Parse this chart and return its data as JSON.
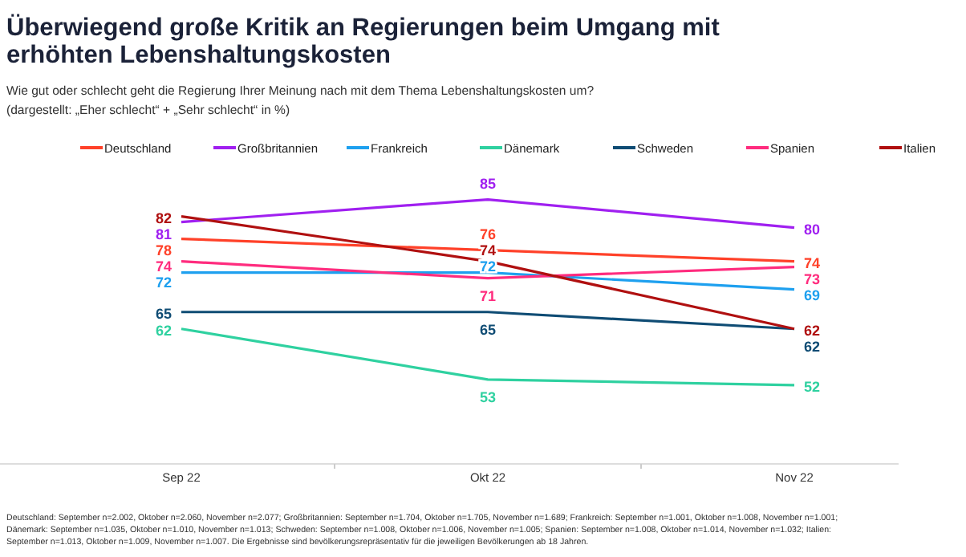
{
  "chart_data": {
    "type": "line",
    "title": "Überwiegend große Kritik an Regierungen beim Umgang mit erhöhten Lebenshaltungskosten",
    "subtitle": "Wie gut oder schlecht geht die Regierung Ihrer Meinung nach mit dem Thema Lebenshaltungskosten um?\n(dargestellt: „Eher schlecht“ + „Sehr schlecht“ in %)",
    "categories": [
      "Sep 22",
      "Okt 22",
      "Nov 22"
    ],
    "series": [
      {
        "name": "Deutschland",
        "color": "#ff4129",
        "values": [
          78,
          76,
          74
        ]
      },
      {
        "name": "Großbritannien",
        "color": "#a020f0",
        "values": [
          81,
          85,
          80
        ]
      },
      {
        "name": "Frankreich",
        "color": "#1ea0ef",
        "values": [
          72,
          72,
          69
        ]
      },
      {
        "name": "Dänemark",
        "color": "#2fd1a0",
        "values": [
          62,
          53,
          52
        ]
      },
      {
        "name": "Schweden",
        "color": "#0f4c74",
        "values": [
          65,
          65,
          62
        ]
      },
      {
        "name": "Spanien",
        "color": "#ff2c7e",
        "values": [
          74,
          71,
          73
        ]
      },
      {
        "name": "Italien",
        "color": "#b01010",
        "values": [
          82,
          74,
          62
        ]
      }
    ],
    "data_labels": true,
    "legend": "top",
    "marker": "none",
    "grid": false,
    "annotations": [
      "Deutschland: September n=2.002, Oktober n=2.060, November n=2.077; Großbritannien: September n=1.704, Oktober n=1.705, November n=1.689; Frankreich: September n=1.001, Oktober n=1.008, November n=1.001; Dänemark: September n=1.035, Oktober n=1.010, November n=1.013; Schweden: September n=1.008, Oktober n=1.006, November n=1.005; Spanien: September n=1.008, Oktober n=1.014, November n=1.032; Italien: September n=1.013, Oktober n=1.009, November n=1.007. Die Ergebnisse sind bevölkerungsrepräsentativ für die jeweiligen Bevölkerungen ab 18 Jahren."
    ]
  }
}
